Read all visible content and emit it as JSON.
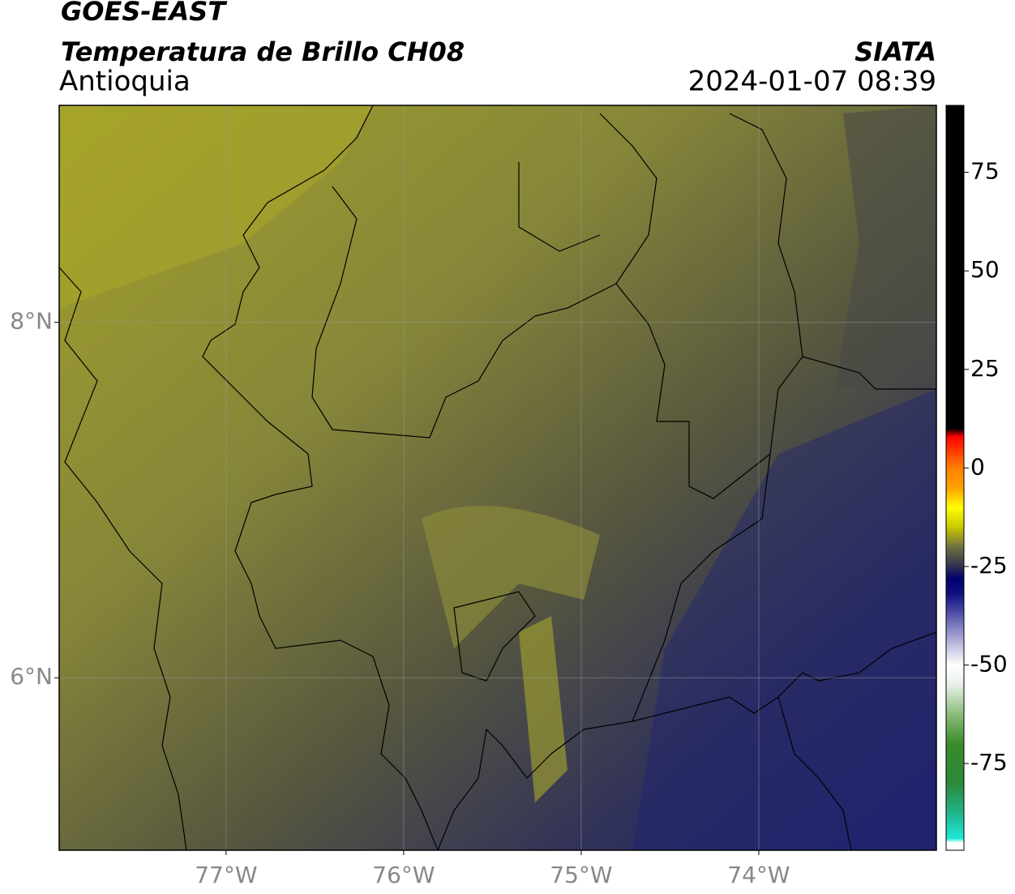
{
  "chart_data": {
    "type": "map",
    "title": "GOES-EAST",
    "subtitle": "Temperatura de Brillo CH08",
    "region": "Antioquia",
    "source": "SIATA",
    "timestamp": "2024-01-07 08:39",
    "xlim": [
      -77.94,
      -73.0
    ],
    "ylim": [
      5.03,
      9.22
    ],
    "xticks": [
      {
        "value": -77,
        "label": "77°W"
      },
      {
        "value": -76,
        "label": "76°W"
      },
      {
        "value": -75,
        "label": "75°W"
      },
      {
        "value": -74,
        "label": "74°W"
      }
    ],
    "yticks": [
      {
        "value": 6,
        "label": "6°N"
      },
      {
        "value": 8,
        "label": "8°N"
      }
    ],
    "grid": true,
    "colorbar_lim": [
      -97,
      92
    ],
    "colorbar_ticks": [
      -75,
      -50,
      -25,
      0,
      25,
      50,
      75
    ],
    "colorbar_stops": [
      {
        "value": -97,
        "color": "#ffffff"
      },
      {
        "value": -95,
        "color": "#ffffff"
      },
      {
        "value": -94,
        "color": "#20e8d8"
      },
      {
        "value": -88,
        "color": "#20b890"
      },
      {
        "value": -80,
        "color": "#2a8a3a"
      },
      {
        "value": -70,
        "color": "#3a8a2a"
      },
      {
        "value": -62,
        "color": "#90c080"
      },
      {
        "value": -55,
        "color": "#e8f0e8"
      },
      {
        "value": -50,
        "color": "#ffffff"
      },
      {
        "value": -45,
        "color": "#c0c0e0"
      },
      {
        "value": -38,
        "color": "#6060b0"
      },
      {
        "value": -32,
        "color": "#101080"
      },
      {
        "value": -28,
        "color": "#000070"
      },
      {
        "value": -25,
        "color": "#303050"
      },
      {
        "value": -20,
        "color": "#707040"
      },
      {
        "value": -15,
        "color": "#c8c800"
      },
      {
        "value": -10,
        "color": "#ffff00"
      },
      {
        "value": -5,
        "color": "#ffa000"
      },
      {
        "value": 0,
        "color": "#ff8000"
      },
      {
        "value": 5,
        "color": "#ff3000"
      },
      {
        "value": 8,
        "color": "#ff0000"
      },
      {
        "value": 10,
        "color": "#000000"
      },
      {
        "value": 92,
        "color": "#000000"
      }
    ]
  }
}
